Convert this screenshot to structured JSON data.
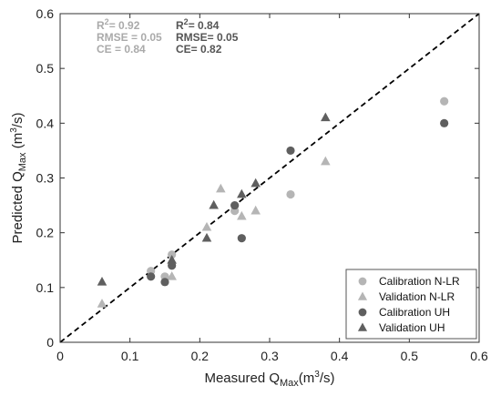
{
  "chart_data": {
    "type": "scatter",
    "xlabel": {
      "main": "Measured Q",
      "sub": "Max",
      "unit": "(m",
      "sup": "3",
      "tail": "/s)"
    },
    "ylabel": {
      "main": "Predicted Q",
      "sub": "Max",
      "unit": " (m",
      "sup": "3",
      "tail": "/s)"
    },
    "xlim": [
      0,
      0.6
    ],
    "ylim": [
      0,
      0.6
    ],
    "x_ticks": [
      "0",
      "0.1",
      "0.2",
      "0.3",
      "0.4",
      "0.5",
      "0.6"
    ],
    "y_ticks": [
      "0",
      "0.1",
      "0.2",
      "0.3",
      "0.4",
      "0.5",
      "0.6"
    ],
    "x_tick_values": [
      0,
      0.1,
      0.2,
      0.3,
      0.4,
      0.5,
      0.6
    ],
    "y_tick_values": [
      0,
      0.1,
      0.2,
      0.3,
      0.4,
      0.5,
      0.6
    ],
    "grid": false,
    "reference_line": {
      "style": "dashed",
      "from": [
        0,
        0
      ],
      "to": [
        0.6,
        0.6
      ]
    },
    "legend_position": "bottom-right",
    "stats": [
      {
        "color": "#aaaaaa",
        "lines": [
          {
            "label": "R",
            "sup": "2",
            "value": "= 0.92"
          },
          {
            "label": "RMSE",
            "sup": "",
            "value": " = 0.05"
          },
          {
            "label": "CE",
            "sup": "",
            "value": " = 0.84"
          }
        ]
      },
      {
        "color": "#555555",
        "lines": [
          {
            "label": "R",
            "sup": "2",
            "value": "= 0.84"
          },
          {
            "label": "RMSE",
            "sup": "",
            "value": "= 0.05"
          },
          {
            "label": "CE",
            "sup": "",
            "value": "= 0.82"
          }
        ]
      }
    ],
    "series": [
      {
        "name": "Calibration N-LR",
        "marker": "circle",
        "color": "#b5b5b5",
        "points": [
          [
            0.13,
            0.13
          ],
          [
            0.15,
            0.12
          ],
          [
            0.16,
            0.16
          ],
          [
            0.25,
            0.24
          ],
          [
            0.33,
            0.27
          ],
          [
            0.55,
            0.44
          ]
        ]
      },
      {
        "name": "Validation N-LR",
        "marker": "triangle",
        "color": "#b5b5b5",
        "points": [
          [
            0.06,
            0.07
          ],
          [
            0.16,
            0.12
          ],
          [
            0.21,
            0.21
          ],
          [
            0.23,
            0.28
          ],
          [
            0.26,
            0.23
          ],
          [
            0.28,
            0.24
          ],
          [
            0.38,
            0.33
          ]
        ]
      },
      {
        "name": "Calibration UH",
        "marker": "circle",
        "color": "#5f5f5f",
        "points": [
          [
            0.13,
            0.12
          ],
          [
            0.15,
            0.11
          ],
          [
            0.16,
            0.14
          ],
          [
            0.25,
            0.25
          ],
          [
            0.26,
            0.19
          ],
          [
            0.33,
            0.35
          ],
          [
            0.55,
            0.4
          ]
        ]
      },
      {
        "name": "Validation UH",
        "marker": "triangle",
        "color": "#5f5f5f",
        "points": [
          [
            0.06,
            0.11
          ],
          [
            0.16,
            0.15
          ],
          [
            0.21,
            0.19
          ],
          [
            0.22,
            0.25
          ],
          [
            0.26,
            0.27
          ],
          [
            0.28,
            0.29
          ],
          [
            0.38,
            0.41
          ]
        ]
      }
    ]
  }
}
